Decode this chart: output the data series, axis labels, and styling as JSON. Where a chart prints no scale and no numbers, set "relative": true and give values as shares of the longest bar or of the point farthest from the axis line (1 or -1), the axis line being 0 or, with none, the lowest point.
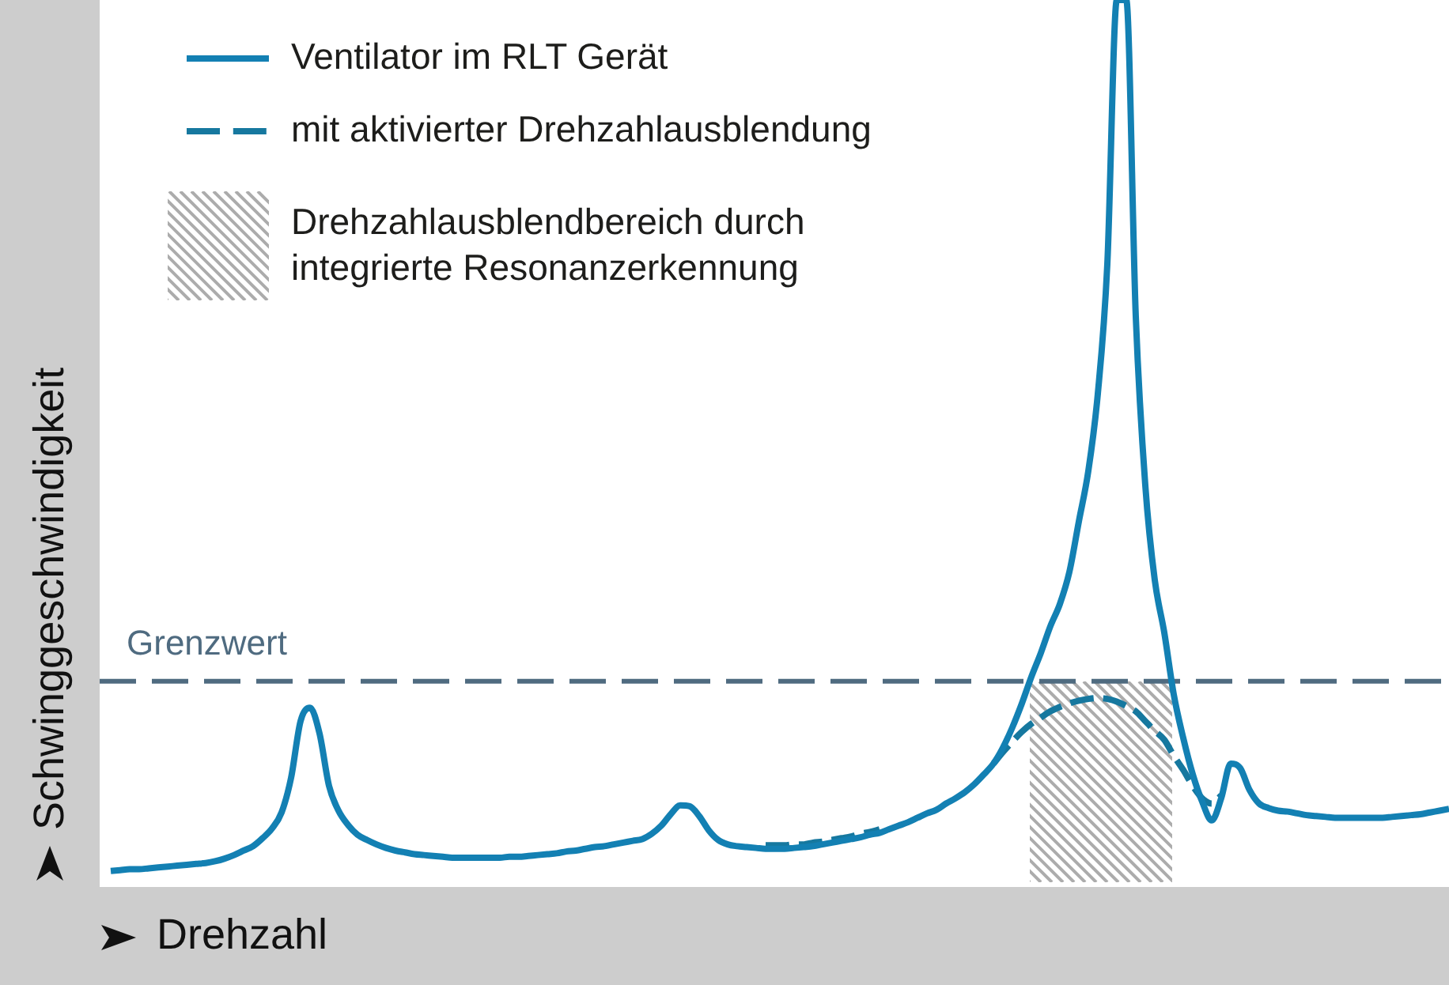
{
  "chart_data": {
    "type": "line",
    "relative": true,
    "xlabel": "Drehzahl",
    "ylabel": "Schwinggeschwindigkeit",
    "legend": "top left",
    "categories": [
      null,
      null,
      null,
      null,
      null,
      null,
      null,
      null,
      null,
      null,
      null,
      null,
      null,
      null,
      null,
      null,
      null,
      null,
      null,
      null,
      null,
      null,
      null,
      null,
      null,
      null,
      null,
      null,
      null,
      null,
      null,
      null,
      null,
      null,
      null,
      null,
      null,
      null,
      null,
      null,
      null,
      null,
      null,
      null,
      null,
      null,
      null,
      null,
      null,
      null,
      null,
      null,
      null,
      null,
      null,
      null,
      null,
      null,
      null,
      null,
      null,
      null,
      null,
      null,
      null,
      null,
      null,
      null,
      null,
      null,
      null,
      null,
      null,
      null,
      null,
      null,
      null,
      null,
      null,
      null,
      null,
      null,
      null,
      null,
      null,
      null,
      null,
      null,
      null,
      null,
      null,
      null,
      null,
      null,
      null,
      null,
      null,
      null,
      null,
      null,
      null,
      null,
      null,
      null,
      null,
      null,
      null,
      null,
      null,
      null,
      null,
      null,
      null,
      null,
      null,
      null,
      null,
      null,
      null,
      null,
      null,
      null,
      null,
      null,
      null,
      null,
      null,
      null,
      null,
      null,
      null,
      null,
      null,
      null,
      null,
      null,
      null,
      null,
      null,
      null,
      null,
      null
    ],
    "series": [
      {
        "name": "Ventilator im RLT Gerät",
        "color": "#1380b3",
        "line_style": "solid",
        "values": [
          0.018,
          0.019,
          0.02,
          0.02,
          0.021,
          0.022,
          0.023,
          0.024,
          0.025,
          0.026,
          0.027,
          0.029,
          0.032,
          0.036,
          0.041,
          0.046,
          0.055,
          0.066,
          0.084,
          0.123,
          0.187,
          0.202,
          0.173,
          0.114,
          0.086,
          0.07,
          0.059,
          0.053,
          0.048,
          0.044,
          0.041,
          0.039,
          0.037,
          0.036,
          0.035,
          0.034,
          0.033,
          0.033,
          0.033,
          0.033,
          0.033,
          0.033,
          0.034,
          0.034,
          0.035,
          0.036,
          0.037,
          0.038,
          0.04,
          0.041,
          0.043,
          0.045,
          0.046,
          0.048,
          0.05,
          0.052,
          0.054,
          0.06,
          0.069,
          0.082,
          0.092,
          0.091,
          0.08,
          0.064,
          0.053,
          0.048,
          0.046,
          0.045,
          0.044,
          0.043,
          0.043,
          0.043,
          0.044,
          0.045,
          0.046,
          0.048,
          0.05,
          0.052,
          0.054,
          0.056,
          0.059,
          0.061,
          0.065,
          0.069,
          0.073,
          0.078,
          0.083,
          0.087,
          0.094,
          0.1,
          0.107,
          0.116,
          0.127,
          0.139,
          0.157,
          0.18,
          0.207,
          0.237,
          0.264,
          0.294,
          0.319,
          0.355,
          0.412,
          0.469,
          0.556,
          0.702,
          1,
          1,
          0.643,
          0.453,
          0.346,
          0.287,
          0.217,
          0.168,
          0.127,
          0.096,
          0.075,
          0.1,
          0.139,
          0.134,
          0.109,
          0.094,
          0.089,
          0.086,
          0.085,
          0.083,
          0.081,
          0.08,
          0.079,
          0.078,
          0.078,
          0.078,
          0.078,
          0.078,
          0.078,
          0.079,
          0.08,
          0.081,
          0.082,
          0.084,
          0.086,
          0.088
        ]
      },
      {
        "name": "mit aktivierter Drehzahlausblendung",
        "color": "#16789f",
        "line_style": "dashed",
        "values": [
          null,
          null,
          null,
          null,
          null,
          null,
          null,
          null,
          null,
          null,
          null,
          null,
          null,
          null,
          null,
          null,
          null,
          null,
          null,
          null,
          null,
          null,
          null,
          null,
          null,
          null,
          null,
          null,
          null,
          null,
          null,
          null,
          null,
          null,
          null,
          null,
          null,
          null,
          null,
          null,
          null,
          null,
          null,
          null,
          null,
          null,
          null,
          null,
          null,
          null,
          null,
          null,
          null,
          null,
          null,
          null,
          null,
          null,
          null,
          null,
          null,
          null,
          null,
          null,
          null,
          null,
          null,
          null,
          null,
          0.047,
          0.047,
          0.047,
          0.048,
          0.048,
          0.05,
          0.051,
          0.053,
          0.055,
          0.057,
          0.06,
          0.062,
          0.065,
          null,
          null,
          null,
          null,
          null,
          null,
          null,
          null,
          null,
          null,
          null,
          0.139,
          0.152,
          0.164,
          0.175,
          0.184,
          0.191,
          0.198,
          0.203,
          0.207,
          0.21,
          0.212,
          0.213,
          0.212,
          0.209,
          0.204,
          0.198,
          0.187,
          0.176,
          0.166,
          0.148,
          0.132,
          0.114,
          0.1,
          0.094,
          0.103,
          null,
          null,
          null,
          null,
          null,
          null,
          null,
          null,
          null,
          null,
          null,
          null,
          null,
          null,
          null,
          null,
          null,
          null,
          null,
          null,
          null,
          null,
          null,
          null
        ]
      }
    ],
    "ref_lines": [
      {
        "axis": "y",
        "value": 0.232,
        "label": "Grenzwert",
        "color": "#4f6b80",
        "line_style": "dashed"
      }
    ],
    "annotations": [
      "Drehzahlausblendbereich durch integrierte Resonanzerkennung"
    ]
  }
}
